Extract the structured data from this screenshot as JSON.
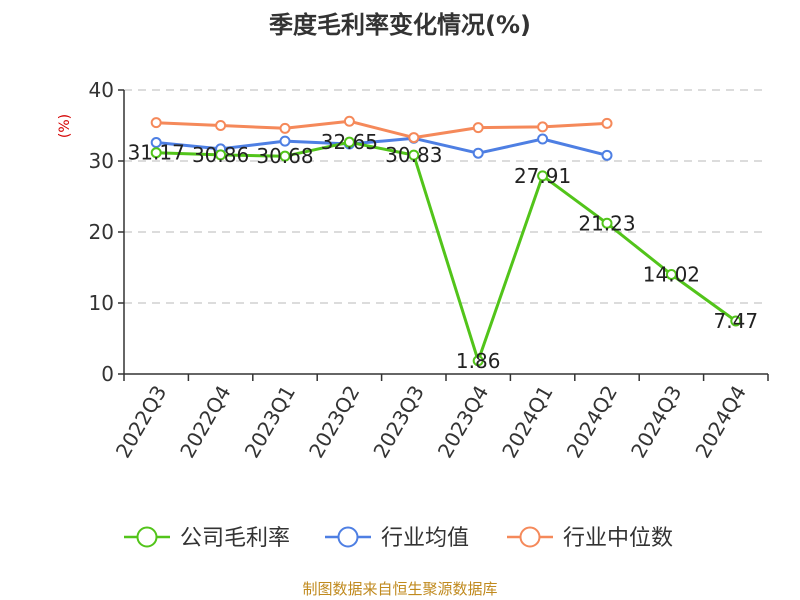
{
  "chart_data": {
    "type": "line",
    "title": "季度毛利率变化情况(%)",
    "ylabel": "(%)",
    "xlabel": "",
    "ylim": [
      0,
      40
    ],
    "yticks": [
      0,
      10,
      20,
      30,
      40
    ],
    "categories": [
      "2022Q3",
      "2022Q4",
      "2023Q1",
      "2023Q2",
      "2023Q3",
      "2023Q4",
      "2024Q1",
      "2024Q2",
      "2024Q3",
      "2024Q4"
    ],
    "grid": true,
    "legend_position": "bottom",
    "series": [
      {
        "name": "公司毛利率",
        "color": "#52c41a",
        "values": [
          31.17,
          30.86,
          30.68,
          32.65,
          30.83,
          1.86,
          27.91,
          21.23,
          14.02,
          7.47
        ],
        "labels": [
          "31.17",
          "30.86",
          "30.68",
          "32.65",
          "30.83",
          "1.86",
          "27.91",
          "21.23",
          "14.02",
          "7.47"
        ]
      },
      {
        "name": "行业均值",
        "color": "#4e7fe3",
        "values": [
          32.6,
          31.7,
          32.8,
          32.4,
          33.2,
          31.1,
          33.1,
          30.8,
          null,
          null
        ]
      },
      {
        "name": "行业中位数",
        "color": "#f5895a",
        "values": [
          35.4,
          35.0,
          34.6,
          35.6,
          33.3,
          34.7,
          34.8,
          35.3,
          null,
          null
        ]
      }
    ]
  },
  "source_text": "制图数据来自恒生聚源数据库"
}
